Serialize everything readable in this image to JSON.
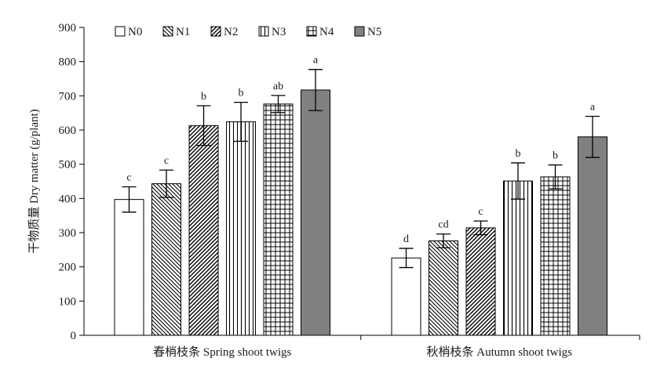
{
  "chart_data": {
    "type": "bar",
    "categories": [
      "春梢枝条 Spring shoot twigs",
      "秋梢枝条 Autumn shoot twigs"
    ],
    "series": [
      {
        "name": "N0",
        "pattern": "none",
        "values": [
          397,
          226
        ],
        "errors": [
          37,
          28
        ],
        "letters": [
          "c",
          "d"
        ]
      },
      {
        "name": "N1",
        "pattern": "backdiag",
        "values": [
          443,
          276
        ],
        "errors": [
          40,
          20
        ],
        "letters": [
          "c",
          "cd"
        ]
      },
      {
        "name": "N2",
        "pattern": "fwddiag",
        "values": [
          613,
          314
        ],
        "errors": [
          58,
          20
        ],
        "letters": [
          "b",
          "c"
        ]
      },
      {
        "name": "N3",
        "pattern": "vertical",
        "values": [
          624,
          451
        ],
        "errors": [
          57,
          53
        ],
        "letters": [
          "b",
          "b"
        ]
      },
      {
        "name": "N4",
        "pattern": "grid",
        "values": [
          676,
          463
        ],
        "errors": [
          25,
          35
        ],
        "letters": [
          "ab",
          "b"
        ]
      },
      {
        "name": "N5",
        "pattern": "solid",
        "values": [
          717,
          580
        ],
        "errors": [
          60,
          60
        ],
        "letters": [
          "a",
          "a"
        ]
      }
    ],
    "ylabel": "干物质量 Dry matter (g/plant)",
    "xlabel": "",
    "ylim": [
      0,
      900
    ],
    "yticks": [
      0,
      100,
      200,
      300,
      400,
      500,
      600,
      700,
      800,
      900
    ],
    "grid": false,
    "legend_position": "top-left",
    "colors": {
      "solid_fill": "#808080",
      "stroke": "#000000",
      "background": "#ffffff"
    }
  }
}
